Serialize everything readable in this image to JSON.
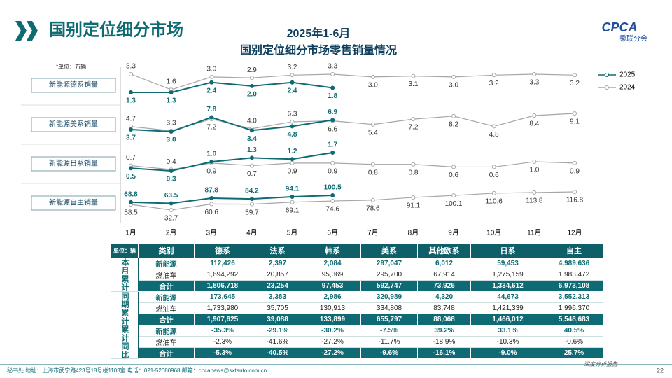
{
  "header": {
    "title": "国别定位细分市场",
    "logo": "CPCA",
    "logo_sub": "乘联分会"
  },
  "chart_data": {
    "type": "line",
    "title": "2025年1-6月",
    "subtitle": "国别定位细分市场零售销量情况",
    "unit_note": "*单位：万辆",
    "categories": [
      "1月",
      "2月",
      "3月",
      "4月",
      "5月",
      "6月",
      "7月",
      "8月",
      "9月",
      "10月",
      "11月",
      "12月"
    ],
    "legend": [
      {
        "name": "2025",
        "color": "#0e6b74"
      },
      {
        "name": "2024",
        "color": "#a6a6a6"
      }
    ],
    "panels": [
      {
        "label": "新能源德系销量",
        "ylim": [
          1.3,
          3.3
        ],
        "series": [
          {
            "values": [
              1.3,
              1.3,
              2.4,
              2.0,
              2.4,
              1.8
            ],
            "value_labels": [
              "1.3",
              "1.3",
              "2.4",
              "2.0",
              "2.4",
              "1.8"
            ]
          },
          {
            "values": [
              3.3,
              1.6,
              3.0,
              2.9,
              3.2,
              3.3,
              3.0,
              3.1,
              3.0,
              3.2,
              3.3,
              3.2
            ],
            "value_labels": [
              "3.3",
              "1.6",
              "3.0",
              "2.9",
              "3.2",
              "3.3",
              "3.0",
              "3.1",
              "3.0",
              "3.2",
              "3.3",
              "3.2"
            ]
          }
        ]
      },
      {
        "label": "新能源美系销量",
        "ylim": [
          3.0,
          9.1
        ],
        "series": [
          {
            "values": [
              3.7,
              3.0,
              7.8,
              3.4,
              4.8,
              6.9
            ],
            "value_labels": [
              "3.7",
              "3.0",
              "7.8",
              "3.4",
              "4.8",
              "6.9"
            ]
          },
          {
            "values": [
              4.7,
              3.3,
              7.2,
              4.0,
              6.3,
              6.6,
              5.4,
              7.2,
              8.2,
              4.8,
              8.4,
              9.1
            ],
            "value_labels": [
              "4.7",
              "3.3",
              "7.2",
              "4.0",
              "6.3",
              "6.6",
              "5.4",
              "7.2",
              "8.2",
              "4.8",
              "8.4",
              "9.1"
            ]
          }
        ]
      },
      {
        "label": "新能源日系销量",
        "ylim": [
          0.3,
          1.7
        ],
        "series": [
          {
            "values": [
              0.5,
              0.3,
              1.0,
              1.3,
              1.2,
              1.7
            ],
            "value_labels": [
              "0.5",
              "0.3",
              "1.0",
              "1.3",
              "1.2",
              "1.7"
            ]
          },
          {
            "values": [
              0.7,
              0.4,
              0.9,
              0.7,
              0.9,
              0.9,
              0.8,
              0.8,
              0.6,
              0.6,
              1.0,
              0.9
            ],
            "value_labels": [
              "0.7",
              "0.4",
              "0.9",
              "0.7",
              "0.9",
              "0.9",
              "0.8",
              "0.8",
              "0.6",
              "0.6",
              "1.0",
              "0.9"
            ]
          }
        ]
      },
      {
        "label": "新能源自主销量",
        "ylim": [
          32.7,
          116.8
        ],
        "series": [
          {
            "values": [
              68.8,
              63.5,
              87.8,
              84.2,
              94.1,
              100.5
            ],
            "value_labels": [
              "68.8",
              "63.5",
              "87.8",
              "84.2",
              "94.1",
              "100.5"
            ]
          },
          {
            "values": [
              58.5,
              32.7,
              60.6,
              59.7,
              69.1,
              74.6,
              78.6,
              91.1,
              100.1,
              110.6,
              113.8,
              116.8
            ],
            "value_labels": [
              "58.5",
              "32.7",
              "60.6",
              "59.7",
              "69.1",
              "74.6",
              "78.6",
              "91.1",
              "100.1",
              "110.6",
              "113.8",
              "116.8"
            ]
          }
        ]
      }
    ]
  },
  "table": {
    "header": [
      "单位：辆",
      "类别",
      "德系",
      "法系",
      "韩系",
      "美系",
      "其他欧系",
      "日系",
      "自主"
    ],
    "groups": [
      {
        "label": "本月累计",
        "rows": [
          [
            "新能源",
            "112,426",
            "2,397",
            "2,084",
            "297,047",
            "6,012",
            "59,453",
            "4,989,636"
          ],
          [
            "燃油车",
            "1,694,292",
            "20,857",
            "95,369",
            "295,700",
            "67,914",
            "1,275,159",
            "1,983,472"
          ],
          [
            "合计",
            "1,806,718",
            "23,254",
            "97,453",
            "592,747",
            "73,926",
            "1,334,612",
            "6,973,108"
          ]
        ]
      },
      {
        "label": "同期累计",
        "rows": [
          [
            "新能源",
            "173,645",
            "3,383",
            "2,986",
            "320,989",
            "4,320",
            "44,673",
            "3,552,313"
          ],
          [
            "燃油车",
            "1,733,980",
            "35,705",
            "130,913",
            "334,808",
            "83,748",
            "1,421,339",
            "1,996,370"
          ],
          [
            "合计",
            "1,907,625",
            "39,088",
            "133,899",
            "655,797",
            "88,068",
            "1,466,012",
            "5,548,683"
          ]
        ]
      },
      {
        "label": "累计同比",
        "rows": [
          [
            "新能源",
            "-35.3%",
            "-29.1%",
            "-30.2%",
            "-7.5%",
            "39.2%",
            "33.1%",
            "40.5%"
          ],
          [
            "燃油车",
            "-2.3%",
            "-41.6%",
            "-27.2%",
            "-11.7%",
            "-18.9%",
            "-10.3%",
            "-0.6%"
          ],
          [
            "合计",
            "-5.3%",
            "-40.5%",
            "-27.2%",
            "-9.6%",
            "-16.1%",
            "-9.0%",
            "25.7%"
          ]
        ]
      }
    ]
  },
  "footer": {
    "address": "秘书处  地址：上海市武宁路423号18号楼1103室  电话：021-52680968  邮箱：cpcanews@sxtauto.com.cn",
    "tag": "深度分析报告",
    "page": "22"
  }
}
